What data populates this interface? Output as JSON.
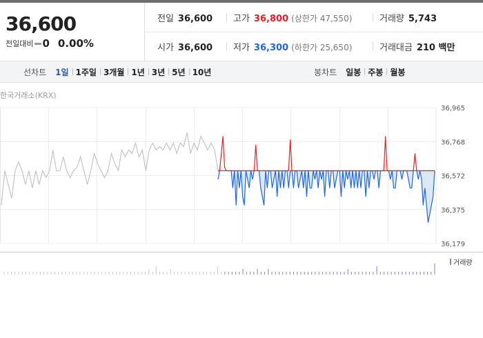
{
  "quote": {
    "price": "36,600",
    "change_label": "전일대비",
    "change_value": "0",
    "change_percent": "0.00%",
    "prev_close_label": "전일",
    "prev_close": "36,600",
    "high_label": "고가",
    "high": "36,800",
    "upper_limit": "(상한가 47,550)",
    "volume_label": "거래량",
    "volume": "5,743",
    "open_label": "시가",
    "open": "36,600",
    "low_label": "저가",
    "low": "36,300",
    "lower_limit": "(하한가 25,650)",
    "value_label": "거래대금",
    "value": "210 백만"
  },
  "colors": {
    "up": "#e02020",
    "down": "#1f66d8",
    "flat": "#999999",
    "history": "#c4c4c4"
  },
  "period_tabs": {
    "label": "선차트",
    "items": [
      "1일",
      "1주일",
      "3개월",
      "1년",
      "3년",
      "5년",
      "10년"
    ],
    "selected": "1일"
  },
  "candle_tabs": {
    "label": "봉차트",
    "items": [
      "일봉",
      "주봉",
      "월봉"
    ]
  },
  "chart_data": {
    "type": "line",
    "source": "한국거래소(KRX)",
    "y_ticks": [
      "36,965",
      "36,768",
      "36,572",
      "36,375",
      "36,179"
    ],
    "ylim": [
      36179,
      36965
    ],
    "reference": 36600,
    "history_y": [
      36400,
      36600,
      36520,
      36440,
      36600,
      36650,
      36600,
      36520,
      36600,
      36500,
      36600,
      36520,
      36600,
      36560,
      36600,
      36720,
      36600,
      36600,
      36680,
      36600,
      36560,
      36600,
      36620,
      36680,
      36600,
      36520,
      36600,
      36700,
      36640,
      36600,
      36560,
      36600,
      36700,
      36640,
      36600,
      36720,
      36680,
      36720,
      36700,
      36760,
      36680,
      36720,
      36600,
      36720,
      36760,
      36720,
      36740,
      36720,
      36760,
      36720,
      36760,
      36700,
      36760,
      36740,
      36820,
      36700,
      36760,
      36720,
      36800,
      36760,
      36720,
      36760,
      36720,
      36600
    ],
    "today_y": [
      36550,
      36600,
      36700,
      36800,
      36620,
      36600,
      36600,
      36600,
      36600,
      36500,
      36600,
      36400,
      36600,
      36500,
      36600,
      36450,
      36400,
      36600,
      36550,
      36500,
      36600,
      36550,
      36600,
      36750,
      36600,
      36600,
      36500,
      36450,
      36400,
      36600,
      36500,
      36600,
      36600,
      36500,
      36550,
      36600,
      36450,
      36600,
      36500,
      36600,
      36500,
      36600,
      36600,
      36500,
      36780,
      36600,
      36500,
      36600,
      36600,
      36500,
      36550,
      36600,
      36500,
      36600,
      36450,
      36600,
      36500,
      36500,
      36600,
      36550,
      36600,
      36500,
      36600,
      36550,
      36600,
      36450,
      36600,
      36600,
      36500,
      36600,
      36600,
      36500,
      36550,
      36600,
      36600,
      36450,
      36600,
      36500,
      36600,
      36550,
      36600,
      36500,
      36600,
      36500,
      36600,
      36500,
      36600,
      36500,
      36600,
      36600,
      36450,
      36600,
      36500,
      36600,
      36600,
      36550,
      36600,
      36600,
      36500,
      36600,
      36600,
      36600,
      36800,
      36600,
      36600,
      36550,
      36600,
      36500,
      36500,
      36600,
      36600,
      36600,
      36550,
      36600,
      36600,
      36600,
      36550,
      36500,
      36500,
      36600,
      36700,
      36600,
      36550,
      36600,
      36550,
      36400,
      36500,
      36400,
      36300,
      36350,
      36400,
      36450,
      36600
    ],
    "volume_label": "거래량",
    "volume": [
      1,
      1,
      1,
      1,
      1,
      1,
      1,
      1,
      1,
      1,
      1,
      1,
      1,
      1,
      1,
      1,
      1,
      1,
      1,
      1,
      1,
      1,
      1,
      1,
      1,
      1,
      1,
      1,
      1,
      1,
      1,
      1,
      1,
      1,
      1,
      1,
      1,
      1,
      1,
      1,
      2,
      1,
      3,
      1,
      1,
      1,
      2,
      1,
      1,
      1,
      1,
      1,
      1,
      1,
      1,
      1,
      1,
      1,
      1,
      3,
      1,
      1,
      1,
      1,
      1,
      1,
      2,
      1,
      1,
      1,
      2,
      1,
      1,
      2,
      1,
      1,
      1,
      1,
      1,
      1,
      1,
      1,
      1,
      1,
      1,
      1,
      1,
      1,
      1,
      1,
      1,
      1,
      1,
      1,
      1,
      2,
      1,
      1,
      1,
      1,
      1,
      1,
      1,
      3,
      1,
      1,
      1,
      1,
      1,
      1,
      1,
      1,
      1,
      1,
      1,
      1,
      1,
      1,
      1,
      4
    ]
  }
}
